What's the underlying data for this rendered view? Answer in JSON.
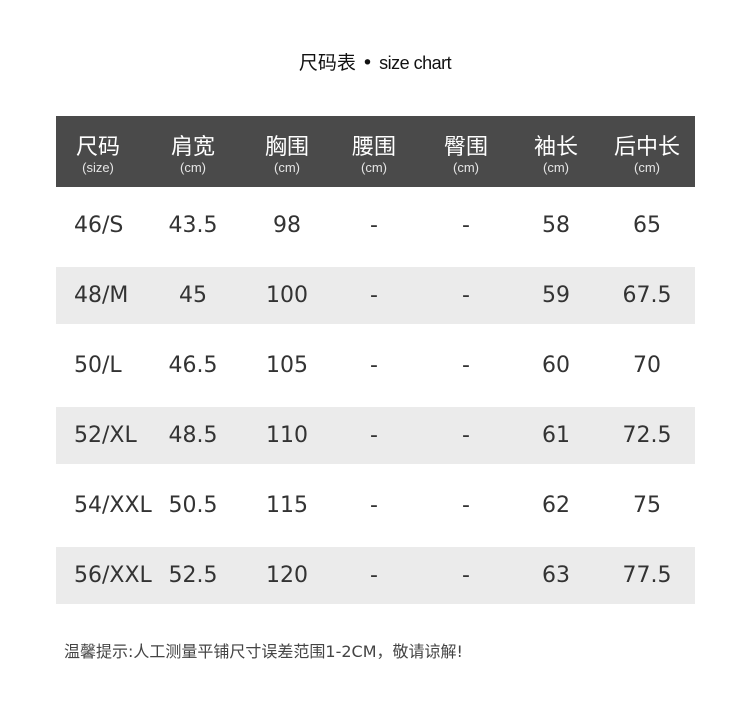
{
  "title": {
    "main": "尺码表",
    "separator": "•",
    "sub": "size chart"
  },
  "columns": [
    {
      "label": "尺码",
      "unit": "(size)"
    },
    {
      "label": "肩宽",
      "unit": "(cm)"
    },
    {
      "label": "胸围",
      "unit": "(cm)"
    },
    {
      "label": "腰围",
      "unit": "(cm)"
    },
    {
      "label": "臀围",
      "unit": "(cm)"
    },
    {
      "label": "袖长",
      "unit": "(cm)"
    },
    {
      "label": "后中长",
      "unit": "(cm)"
    }
  ],
  "rows": [
    [
      "46/S",
      "43.5",
      "98",
      "-",
      "-",
      "58",
      "65"
    ],
    [
      "48/M",
      "45",
      "100",
      "-",
      "-",
      "59",
      "67.5"
    ],
    [
      "50/L",
      "46.5",
      "105",
      "-",
      "-",
      "60",
      "70"
    ],
    [
      "52/XL",
      "48.5",
      "110",
      "-",
      "-",
      "61",
      "72.5"
    ],
    [
      "54/XXL",
      "50.5",
      "115",
      "-",
      "-",
      "62",
      "75"
    ],
    [
      "56/XXL",
      "52.5",
      "120",
      "-",
      "-",
      "63",
      "77.5"
    ]
  ],
  "note": "温馨提示:人工测量平铺尺寸误差范围1-2CM，敬请谅解!",
  "colors": {
    "header_bg": "#4a4a4a",
    "alt_row_bg": "#ebebeb",
    "text": "#333333"
  }
}
